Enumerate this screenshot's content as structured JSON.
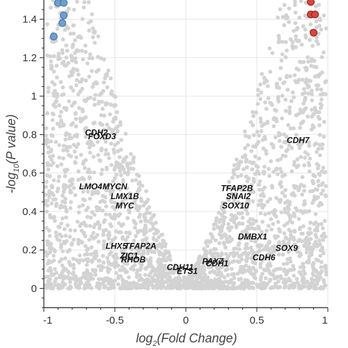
{
  "chart_data": {
    "type": "scatter",
    "title": "",
    "xlabel": {
      "prefix": "log",
      "sub": "2",
      "suffix": "(Fold Change)"
    },
    "ylabel": {
      "prefix": "-log",
      "sub": "10",
      "suffix": "(P value)"
    },
    "xlim": [
      -1,
      1
    ],
    "ylim": [
      -0.1,
      1.5
    ],
    "x_ticks": [
      -1,
      -0.5,
      0,
      0.5,
      1
    ],
    "x_tick_labels": [
      "-1",
      "-0.5",
      "0",
      "0.5",
      "1"
    ],
    "y_ticks": [
      0,
      0.2,
      0.4,
      0.6,
      0.8,
      1,
      1.2,
      1.4
    ],
    "y_tick_labels": [
      "0",
      "0.2",
      "0.4",
      "0.6",
      "0.8",
      "1",
      "1.2",
      "1.4"
    ],
    "grid": true,
    "colors": {
      "background_points": "#d3d3d3",
      "down_regulated": "#6f9fcf",
      "up_regulated": "#d9463b",
      "grid": "#e6e6e6"
    },
    "down_regulated": [
      {
        "x": -0.9,
        "y": 1.485
      },
      {
        "x": -0.86,
        "y": 1.485
      },
      {
        "x": -0.86,
        "y": 1.42
      },
      {
        "x": -0.87,
        "y": 1.38
      },
      {
        "x": -0.93,
        "y": 1.31
      }
    ],
    "up_regulated": [
      {
        "x": 0.88,
        "y": 1.49
      },
      {
        "x": 0.88,
        "y": 1.425
      },
      {
        "x": 0.91,
        "y": 1.425
      },
      {
        "x": 0.9,
        "y": 1.33
      }
    ],
    "labeled_genes": [
      {
        "name": "CDH2",
        "x": -0.63,
        "y": 0.81
      },
      {
        "name": "FOXD3",
        "x": -0.59,
        "y": 0.79
      },
      {
        "name": "CDH7",
        "x": 0.79,
        "y": 0.77
      },
      {
        "name": "LMO4",
        "x": -0.67,
        "y": 0.53
      },
      {
        "name": "MYCN",
        "x": -0.5,
        "y": 0.53
      },
      {
        "name": "TFAP2B",
        "x": 0.36,
        "y": 0.52
      },
      {
        "name": "SNAI2",
        "x": 0.37,
        "y": 0.48
      },
      {
        "name": "LMX1B",
        "x": -0.43,
        "y": 0.48
      },
      {
        "name": "MYC",
        "x": -0.43,
        "y": 0.43
      },
      {
        "name": "SOX10",
        "x": 0.35,
        "y": 0.43
      },
      {
        "name": "DMBX1",
        "x": 0.47,
        "y": 0.27
      },
      {
        "name": "LHX5",
        "x": -0.49,
        "y": 0.22
      },
      {
        "name": "TFAP2A",
        "x": -0.32,
        "y": 0.22
      },
      {
        "name": "SOX9",
        "x": 0.71,
        "y": 0.21
      },
      {
        "name": "ZIC1",
        "x": -0.4,
        "y": 0.17
      },
      {
        "name": "RHOB",
        "x": -0.37,
        "y": 0.15
      },
      {
        "name": "CDH6",
        "x": 0.55,
        "y": 0.16
      },
      {
        "name": "PAX7",
        "x": 0.19,
        "y": 0.14
      },
      {
        "name": "CDH1",
        "x": 0.22,
        "y": 0.13
      },
      {
        "name": "CDH11",
        "x": -0.04,
        "y": 0.11
      },
      {
        "name": "ETS1",
        "x": 0.01,
        "y": 0.09
      }
    ]
  }
}
